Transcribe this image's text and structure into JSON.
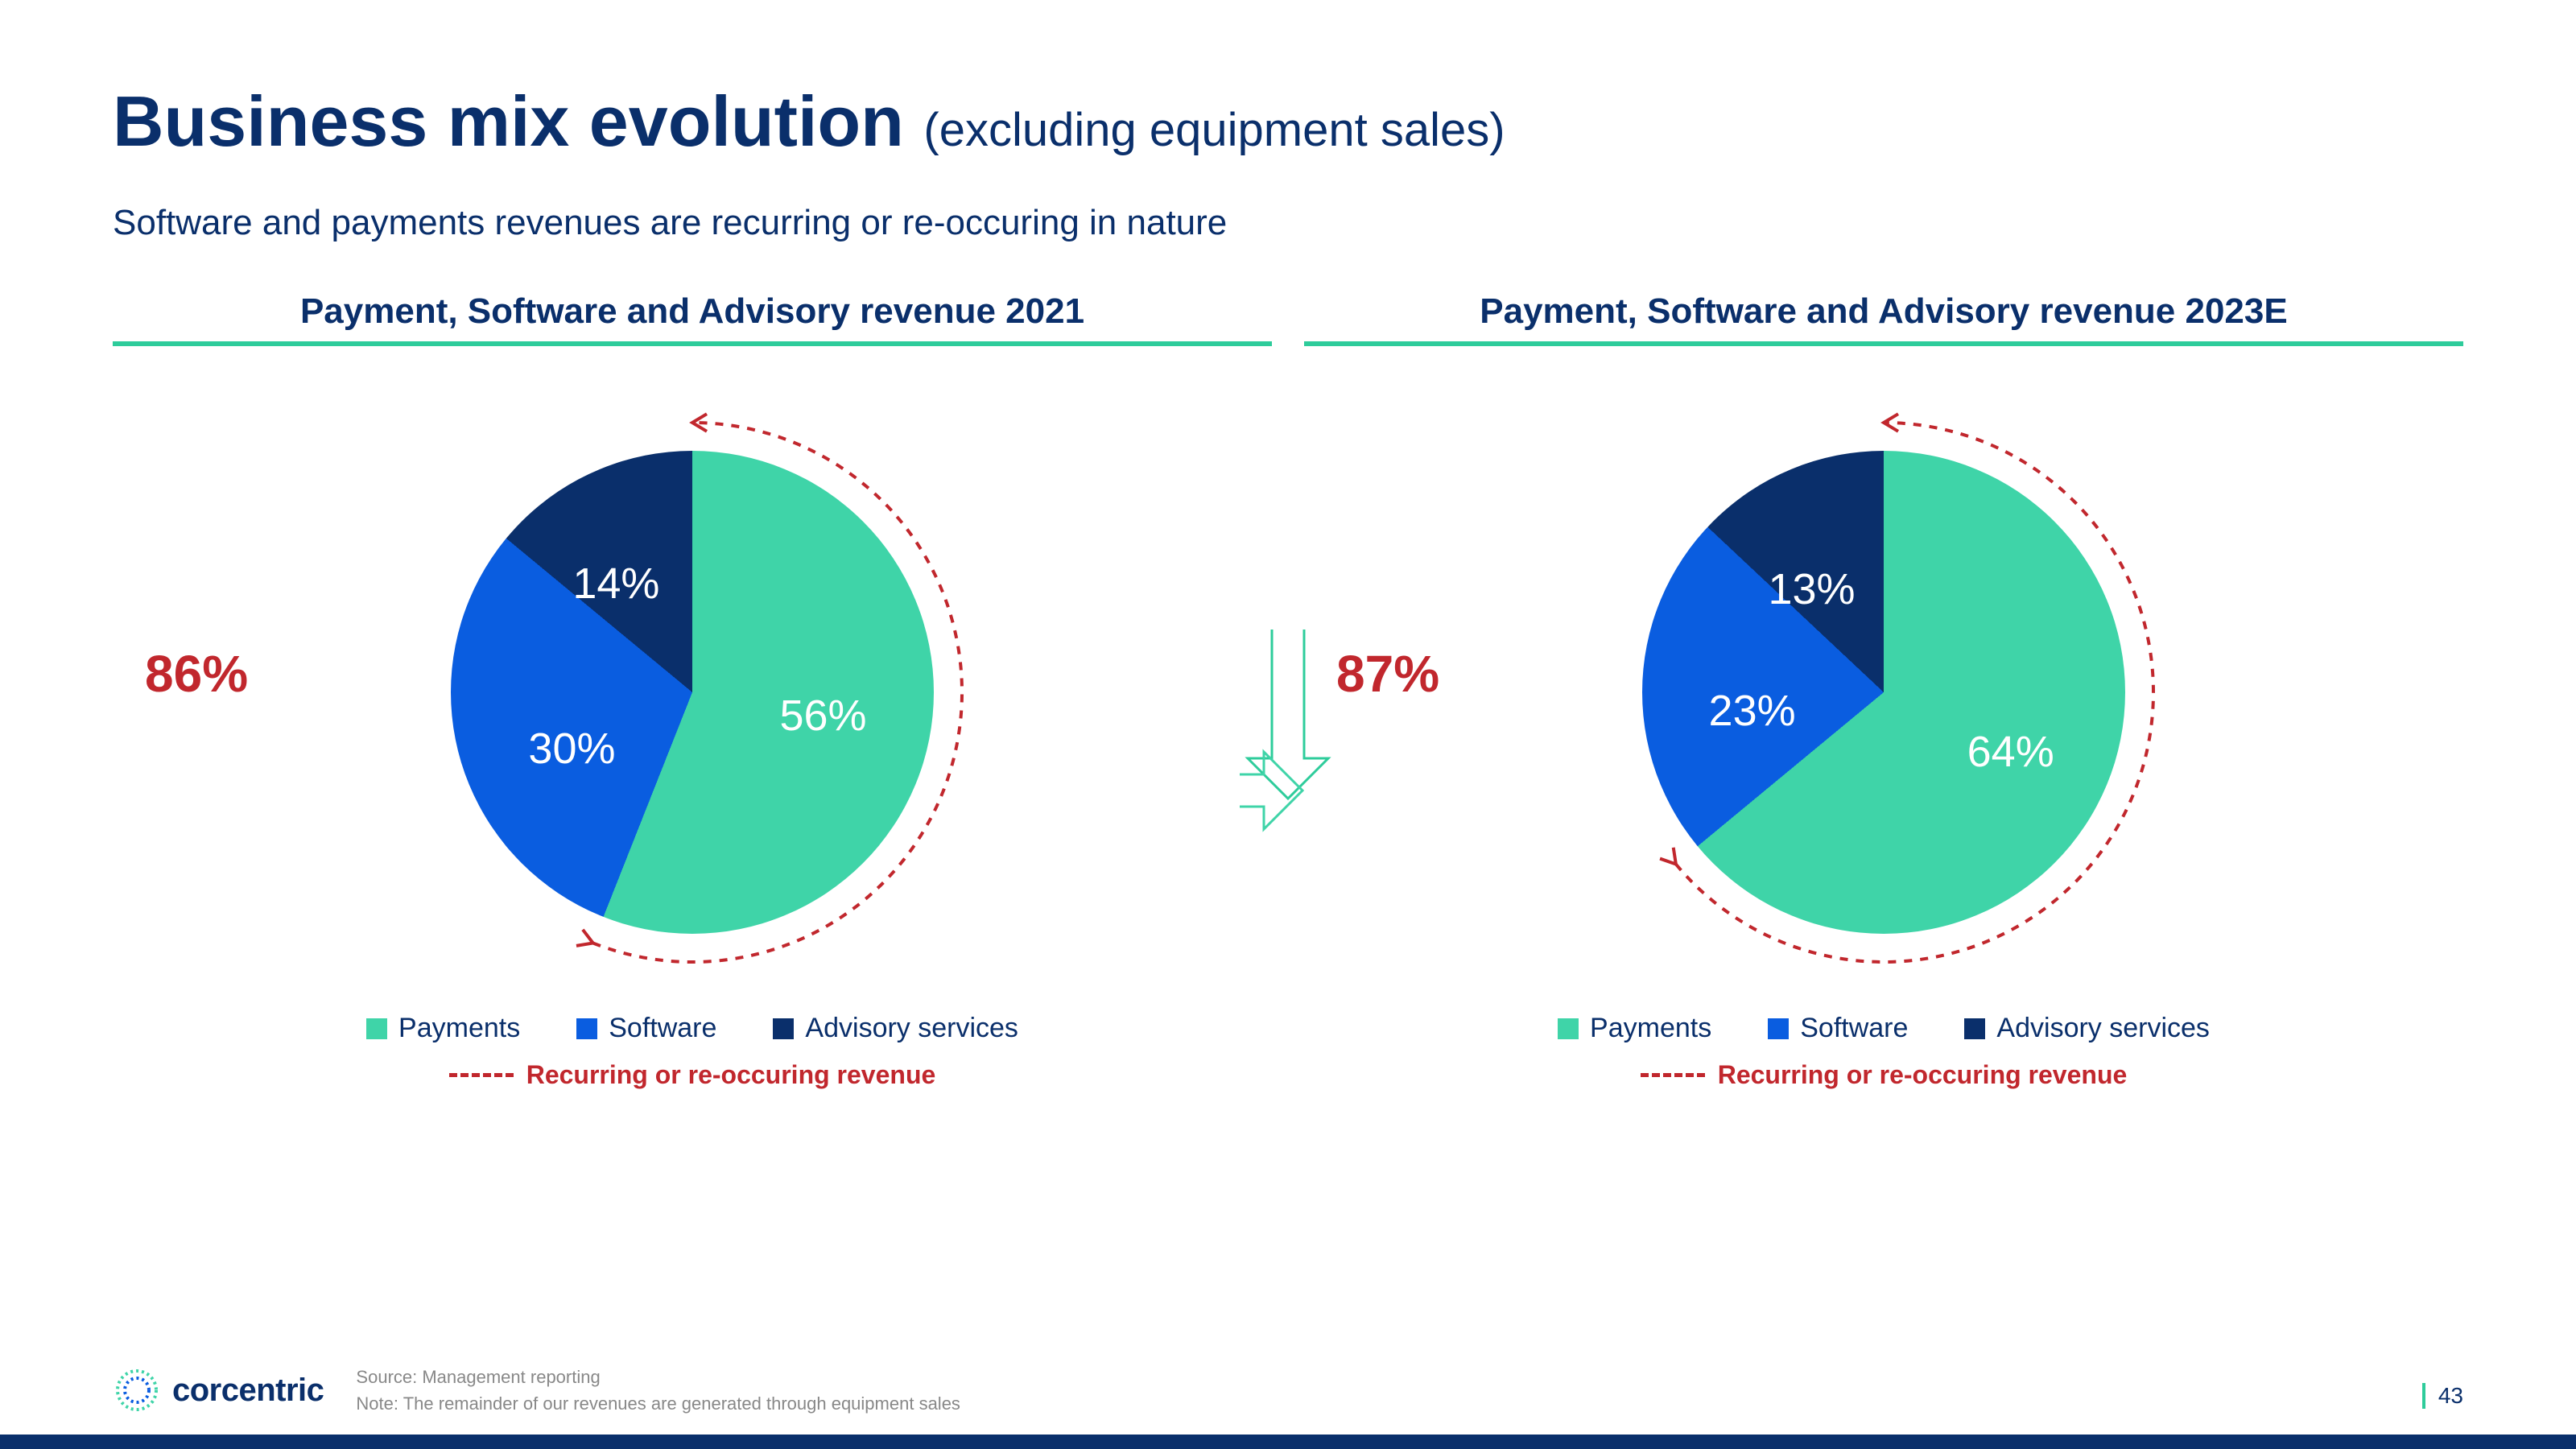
{
  "title_main": "Business mix evolution",
  "title_sub": "(excluding equipment sales)",
  "subtitle": "Software and payments revenues are recurring or re-occuring in nature",
  "colors": {
    "brand_navy": "#0a2f6b",
    "accent_green": "#2ecc9b",
    "red": "#c1272d",
    "payments": "#3fd4a8",
    "software": "#0a5de0",
    "advisory": "#0a2f6b"
  },
  "arrow_stroke_width": 3,
  "arc": {
    "radius": 335,
    "stroke_width": 4,
    "dash": "10,10",
    "arrow_size": 18
  },
  "charts": [
    {
      "title": "Payment, Software and Advisory revenue 2021",
      "recurring_pct": "86%",
      "slices": [
        {
          "name": "Payments",
          "value": 56,
          "color": "#3fd4a8",
          "label_r": 0.55,
          "label_angle": 100
        },
        {
          "name": "Software",
          "value": 30,
          "color": "#0a5de0",
          "label_r": 0.55,
          "label_angle": 245
        },
        {
          "name": "Advisory services",
          "value": 14,
          "color": "#0a2f6b",
          "label_r": 0.55,
          "label_angle": 325
        }
      ],
      "arc_start_deg": 201.6,
      "arc_end_deg": 360
    },
    {
      "title": "Payment, Software and Advisory revenue 2023E",
      "recurring_pct": "87%",
      "slices": [
        {
          "name": "Payments",
          "value": 64,
          "color": "#3fd4a8",
          "label_r": 0.58,
          "label_angle": 115
        },
        {
          "name": "Software",
          "value": 23,
          "color": "#0a5de0",
          "label_r": 0.55,
          "label_angle": 262
        },
        {
          "name": "Advisory services",
          "value": 13,
          "color": "#0a2f6b",
          "label_r": 0.52,
          "label_angle": 325
        }
      ],
      "arc_start_deg": 230.4,
      "arc_end_deg": 360
    }
  ],
  "legend": {
    "items": [
      {
        "label": "Payments",
        "color": "#3fd4a8"
      },
      {
        "label": "Software",
        "color": "#0a5de0"
      },
      {
        "label": "Advisory services",
        "color": "#0a2f6b"
      }
    ],
    "recurring_label": "Recurring or re-occuring revenue"
  },
  "footer": {
    "logo_text": "corcentric",
    "source_line1": "Source: Management reporting",
    "source_line2": "Note: The remainder of our revenues are generated through equipment sales",
    "page_number": "43"
  }
}
